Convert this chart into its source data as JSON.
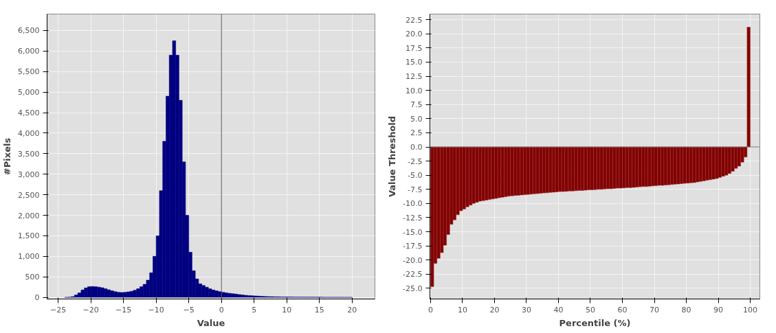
{
  "chart_data": [
    {
      "type": "histogram",
      "xlabel": "Value",
      "ylabel": "#Pixels",
      "color": "#000080",
      "grid": true,
      "xlim": [
        -26.7,
        23.5
      ],
      "ylim": [
        -40,
        6900
      ],
      "xticks": [
        -25,
        -20,
        -15,
        -10,
        -5,
        0,
        5,
        10,
        15,
        20
      ],
      "yticks": [
        0,
        {
          "value": 500,
          "label": "500"
        },
        {
          "value": 1000,
          "label": "1,000"
        },
        {
          "value": 1500,
          "label": "1,500"
        },
        {
          "value": 2000,
          "label": "2,000"
        },
        {
          "value": 2500,
          "label": "2,500"
        },
        {
          "value": 3000,
          "label": "3,000"
        },
        {
          "value": 3500,
          "label": "3,500"
        },
        {
          "value": 4000,
          "label": "4,000"
        },
        {
          "value": 4500,
          "label": "4,500"
        },
        {
          "value": 5000,
          "label": "5,000"
        },
        {
          "value": 5500,
          "label": "5,500"
        },
        {
          "value": 6000,
          "label": "6,000"
        },
        {
          "value": 6500,
          "label": "6,500"
        }
      ],
      "ref_lines": [
        {
          "axis": "x",
          "value": 0,
          "color": "#555555"
        }
      ],
      "bins": [
        -24,
        -23.5,
        -23,
        -22.5,
        -22,
        -21.5,
        -21,
        -20.5,
        -20,
        -19.5,
        -19,
        -18.5,
        -18,
        -17.5,
        -17,
        -16.5,
        -16,
        -15.5,
        -15,
        -14.5,
        -14,
        -13.5,
        -13,
        -12.5,
        -12,
        -11.5,
        -11,
        -10.5,
        -10,
        -9.5,
        -9,
        -8.5,
        -8,
        -7.5,
        -7,
        -6.5,
        -6,
        -5.5,
        -5,
        -4.5,
        -4,
        -3.5,
        -3,
        -2.5,
        -2,
        -1.5,
        -1,
        -0.5,
        0,
        0.5,
        1,
        1.5,
        2,
        2.5,
        3,
        3.5,
        4,
        4.5,
        5,
        5.5,
        6,
        6.5,
        7,
        7.5,
        8,
        8.5,
        9,
        9.5,
        10,
        10.5,
        11,
        11.5,
        12,
        12.5,
        13,
        13.5,
        14,
        14.5,
        15,
        15.5,
        16,
        16.5,
        17,
        17.5,
        18,
        18.5,
        19,
        19.5,
        20
      ],
      "values": [
        0,
        5,
        20,
        60,
        110,
        180,
        230,
        260,
        265,
        260,
        250,
        235,
        210,
        185,
        160,
        140,
        125,
        120,
        125,
        135,
        150,
        175,
        210,
        260,
        320,
        420,
        600,
        1000,
        1500,
        2600,
        3800,
        4900,
        5900,
        6250,
        5900,
        4800,
        3300,
        2000,
        1100,
        650,
        450,
        330,
        290,
        250,
        210,
        180,
        160,
        140,
        125,
        110,
        100,
        90,
        80,
        70,
        60,
        50,
        45,
        40,
        35,
        30,
        25,
        22,
        20,
        18,
        15,
        13,
        12,
        10,
        10,
        9,
        8,
        8,
        7,
        6,
        6,
        5,
        5,
        4,
        4,
        3,
        3,
        3,
        2,
        2,
        2,
        1,
        1,
        1
      ]
    },
    {
      "type": "bar",
      "xlabel": "Percentile (%)",
      "ylabel": "Value Threshold",
      "color": "#800000",
      "grid": true,
      "xlim": [
        -0.2,
        103
      ],
      "ylim": [
        -26.9,
        23.5
      ],
      "xticks": [
        0,
        10,
        20,
        30,
        40,
        50,
        60,
        70,
        80,
        90,
        100
      ],
      "yticks": [
        {
          "value": 22.5,
          "label": "22.5"
        },
        {
          "value": 20,
          "label": "20.0"
        },
        {
          "value": 17.5,
          "label": "17.5"
        },
        {
          "value": 15,
          "label": "15.0"
        },
        {
          "value": 12.5,
          "label": "12.5"
        },
        {
          "value": 10,
          "label": "10.0"
        },
        {
          "value": 7.5,
          "label": "7.5"
        },
        {
          "value": 5,
          "label": "5.0"
        },
        {
          "value": 2.5,
          "label": "2.5"
        },
        {
          "value": 0,
          "label": "0.0"
        },
        {
          "value": -2.5,
          "label": "-2.5"
        },
        {
          "value": -5,
          "label": "-5.0"
        },
        {
          "value": -7.5,
          "label": "-7.5"
        },
        {
          "value": -10,
          "label": "-10.0"
        },
        {
          "value": -12.5,
          "label": "-12.5"
        },
        {
          "value": -15,
          "label": "-15.0"
        },
        {
          "value": -17.5,
          "label": "-17.5"
        },
        {
          "value": -20,
          "label": "-20.0"
        },
        {
          "value": -22.5,
          "label": "-22.5"
        },
        {
          "value": -25,
          "label": "-25.0"
        }
      ],
      "ref_lines": [
        {
          "axis": "y",
          "value": 0,
          "color": "#777777"
        }
      ],
      "x": [
        0.5,
        1.5,
        2.5,
        3.5,
        4.5,
        5.5,
        6.5,
        7.5,
        8.5,
        9.5,
        10.5,
        11.5,
        12.5,
        13.5,
        14.5,
        15.5,
        16.5,
        17.5,
        18.5,
        19.5,
        20.5,
        21.5,
        22.5,
        23.5,
        24.5,
        25.5,
        26.5,
        27.5,
        28.5,
        29.5,
        30.5,
        31.5,
        32.5,
        33.5,
        34.5,
        35.5,
        36.5,
        37.5,
        38.5,
        39.5,
        40.5,
        41.5,
        42.5,
        43.5,
        44.5,
        45.5,
        46.5,
        47.5,
        48.5,
        49.5,
        50.5,
        51.5,
        52.5,
        53.5,
        54.5,
        55.5,
        56.5,
        57.5,
        58.5,
        59.5,
        60.5,
        61.5,
        62.5,
        63.5,
        64.5,
        65.5,
        66.5,
        67.5,
        68.5,
        69.5,
        70.5,
        71.5,
        72.5,
        73.5,
        74.5,
        75.5,
        76.5,
        77.5,
        78.5,
        79.5,
        80.5,
        81.5,
        82.5,
        83.5,
        84.5,
        85.5,
        86.5,
        87.5,
        88.5,
        89.5,
        90.5,
        91.5,
        92.5,
        93.5,
        94.5,
        95.5,
        96.5,
        97.5,
        98.5,
        99.5
      ],
      "values": [
        -24.7,
        -20.6,
        -19.7,
        -18.7,
        -17.4,
        -15.5,
        -13.7,
        -12.9,
        -12.0,
        -11.3,
        -11.0,
        -10.6,
        -10.3,
        -10.0,
        -9.8,
        -9.6,
        -9.5,
        -9.4,
        -9.3,
        -9.2,
        -9.1,
        -9.0,
        -8.9,
        -8.8,
        -8.7,
        -8.65,
        -8.6,
        -8.55,
        -8.5,
        -8.45,
        -8.4,
        -8.35,
        -8.3,
        -8.25,
        -8.2,
        -8.15,
        -8.1,
        -8.05,
        -8.0,
        -7.95,
        -7.9,
        -7.9,
        -7.85,
        -7.8,
        -7.8,
        -7.75,
        -7.7,
        -7.7,
        -7.65,
        -7.6,
        -7.6,
        -7.55,
        -7.5,
        -7.5,
        -7.45,
        -7.4,
        -7.4,
        -7.35,
        -7.3,
        -7.3,
        -7.25,
        -7.2,
        -7.2,
        -7.15,
        -7.1,
        -7.05,
        -7.0,
        -7.0,
        -6.95,
        -6.9,
        -6.85,
        -6.8,
        -6.8,
        -6.75,
        -6.7,
        -6.65,
        -6.6,
        -6.55,
        -6.5,
        -6.45,
        -6.4,
        -6.35,
        -6.3,
        -6.2,
        -6.1,
        -6.0,
        -5.9,
        -5.8,
        -5.7,
        -5.6,
        -5.4,
        -5.2,
        -5.0,
        -4.7,
        -4.3,
        -3.8,
        -3.4,
        -2.7,
        -1.8,
        21.2
      ]
    }
  ]
}
